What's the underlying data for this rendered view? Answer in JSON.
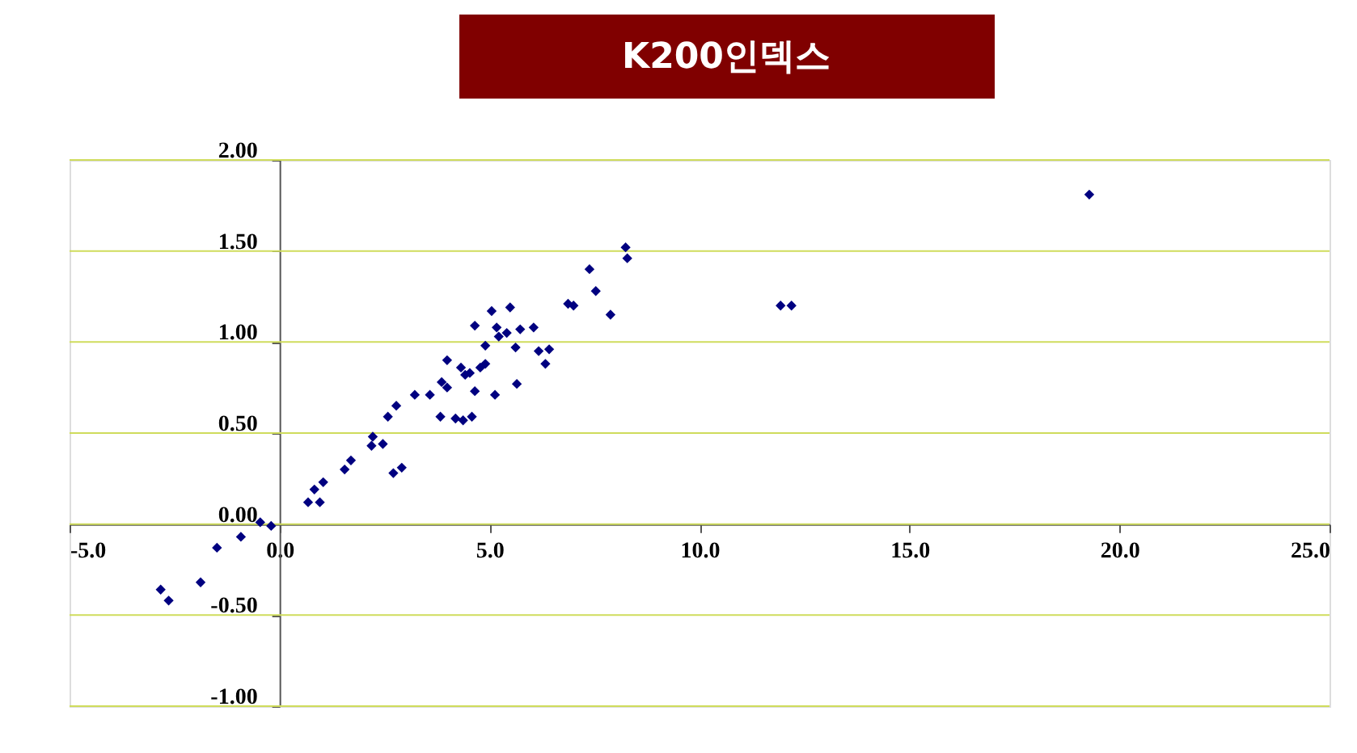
{
  "chart_data": {
    "type": "scatter",
    "title": "K200인덱스",
    "x": [
      0.68,
      0.83,
      0.96,
      1.04,
      1.55,
      1.7,
      2.19,
      2.22,
      2.46,
      2.58,
      2.78,
      2.71,
      2.91,
      3.22,
      3.58,
      3.83,
      3.86,
      3.99,
      3.99,
      4.19,
      4.37,
      4.58,
      4.32,
      4.42,
      4.53,
      4.65,
      4.65,
      4.78,
      4.9,
      4.9,
      5.13,
      5.05,
      5.17,
      5.22,
      5.41,
      5.49,
      5.65,
      5.62,
      5.73,
      6.05,
      6.17,
      6.33,
      6.42,
      6.87,
      7.0,
      7.38,
      7.53,
      7.88,
      8.24,
      8.28,
      -2.83,
      -2.64,
      -1.88,
      -1.49,
      -0.92,
      -0.46,
      -0.2,
      19.28,
      11.93,
      12.19
    ],
    "series": [
      {
        "color": "#000080",
        "values": [
          0.12,
          0.19,
          0.12,
          0.23,
          0.3,
          0.35,
          0.43,
          0.48,
          0.44,
          0.59,
          0.65,
          0.28,
          0.31,
          0.71,
          0.71,
          0.59,
          0.78,
          0.75,
          0.9,
          0.58,
          0.57,
          0.59,
          0.86,
          0.82,
          0.83,
          0.73,
          1.09,
          0.86,
          0.88,
          0.98,
          0.71,
          1.17,
          1.08,
          1.03,
          1.05,
          1.19,
          0.77,
          0.97,
          1.07,
          1.08,
          0.95,
          0.88,
          0.96,
          1.21,
          1.2,
          1.4,
          1.28,
          1.15,
          1.52,
          1.46,
          -0.36,
          -0.42,
          -0.32,
          -0.13,
          -0.07,
          0.01,
          -0.01,
          1.81,
          1.2,
          1.2
        ]
      }
    ],
    "xlim": [
      -5,
      25
    ],
    "xticks": [
      {
        "value": -5,
        "label": "-5.0"
      },
      {
        "value": 0,
        "label": "0.0"
      },
      {
        "value": 5,
        "label": "5.0"
      },
      {
        "value": 10,
        "label": "10.0"
      },
      {
        "value": 15,
        "label": "15.0"
      },
      {
        "value": 20,
        "label": "20.0"
      },
      {
        "value": 25,
        "label": "25.0"
      }
    ],
    "ylim": [
      -1,
      2
    ],
    "yticks": [
      {
        "value": -1,
        "label": "-1.00"
      },
      {
        "value": -0.5,
        "label": "-0.50"
      },
      {
        "value": 0,
        "label": "0.00"
      },
      {
        "value": 0.5,
        "label": "0.50"
      },
      {
        "value": 1,
        "label": "1.00"
      },
      {
        "value": 1.5,
        "label": "1.50"
      },
      {
        "value": 2,
        "label": "2.00"
      }
    ],
    "grid": "y",
    "marker": "diamond",
    "legend": false
  }
}
